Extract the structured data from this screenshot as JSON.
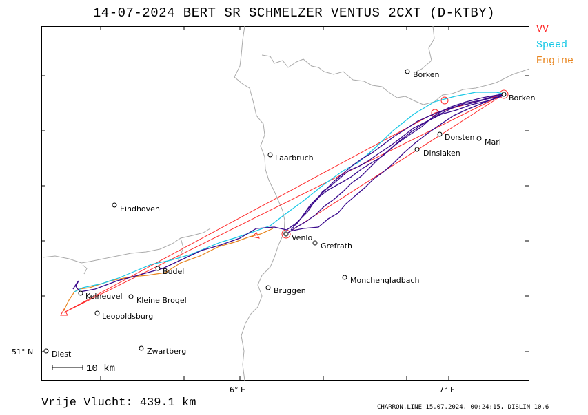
{
  "title": "14-07-2024   BERT SR SCHMELZER   VENTUS 2CXT (D-KTBY)",
  "legend": [
    {
      "label": "VV",
      "color": "#ff2a2a"
    },
    {
      "label": "Speed",
      "color": "#19c8e6"
    },
    {
      "label": "Engine",
      "color": "#e8851e"
    }
  ],
  "colors": {
    "route": "#ff2a2a",
    "speed": "#19c8e6",
    "engine": "#e8851e",
    "track": "#3a0a8c",
    "border": "#aaaaaa"
  },
  "axes": {
    "lon_ticks": [
      "6° E",
      "7° E"
    ],
    "lat_ticks": [
      "51° N"
    ]
  },
  "scale_bar": {
    "label": "10 km"
  },
  "places": [
    {
      "name": "Borken",
      "icon": "circle-marker"
    },
    {
      "name": "Borken",
      "icon": "circle-marker"
    },
    {
      "name": "Dorsten",
      "icon": "circle-marker"
    },
    {
      "name": "Marl",
      "icon": "circle-marker"
    },
    {
      "name": "Dinslaken",
      "icon": "circle-marker"
    },
    {
      "name": "Laarbruch",
      "icon": "circle-marker"
    },
    {
      "name": "Eindhoven",
      "icon": "circle-marker"
    },
    {
      "name": "Venlo",
      "icon": "circle-marker"
    },
    {
      "name": "Grefrath",
      "icon": "circle-marker"
    },
    {
      "name": "Budel",
      "icon": "circle-marker"
    },
    {
      "name": "Kelneuvel",
      "icon": "circle-marker"
    },
    {
      "name": "Kleine Brogel",
      "icon": "circle-marker"
    },
    {
      "name": "Leopoldsburg",
      "icon": "circle-marker"
    },
    {
      "name": "Bruggen",
      "icon": "circle-marker"
    },
    {
      "name": "Monchengladbach",
      "icon": "circle-marker"
    },
    {
      "name": "Diest",
      "icon": "circle-marker"
    },
    {
      "name": "Zwartberg",
      "icon": "circle-marker"
    }
  ],
  "footer": {
    "distance": "Vrije Vlucht:  439.1 km",
    "credit": "CHARRON.LINE 15.07.2024, 00:24:15, DISLIN 10.6"
  }
}
